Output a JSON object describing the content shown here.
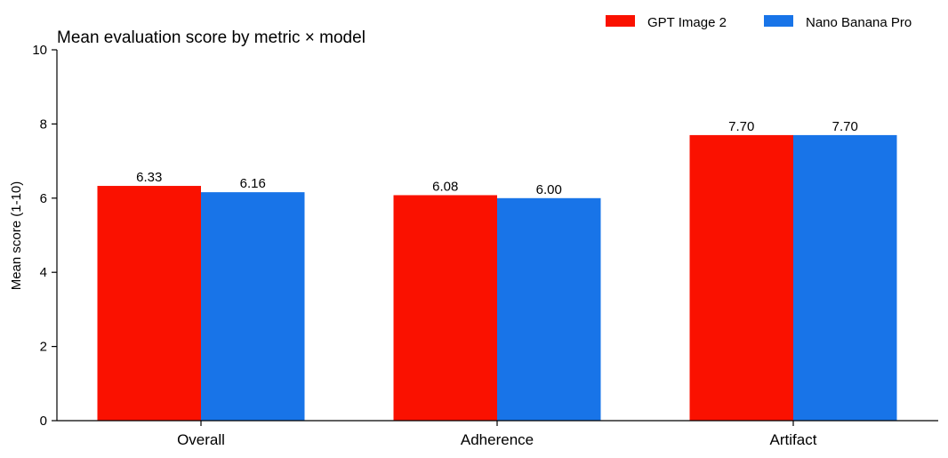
{
  "chart_data": {
    "type": "bar",
    "title": "Mean evaluation score by metric × model",
    "xlabel": "",
    "ylabel": "Mean score (1-10)",
    "ylim": [
      0,
      10
    ],
    "yticks": [
      0,
      2,
      4,
      6,
      8,
      10
    ],
    "categories": [
      "Overall",
      "Adherence",
      "Artifact"
    ],
    "series": [
      {
        "name": "GPT Image 2",
        "color": "#fa1100",
        "values": [
          6.33,
          6.08,
          7.7
        ],
        "labels": [
          "6.33",
          "6.08",
          "7.70"
        ]
      },
      {
        "name": "Nano Banana Pro",
        "color": "#1874e8",
        "values": [
          6.16,
          6.0,
          7.7
        ],
        "labels": [
          "6.16",
          "6.00",
          "7.70"
        ]
      }
    ],
    "grid": false,
    "legend": "top-right"
  }
}
